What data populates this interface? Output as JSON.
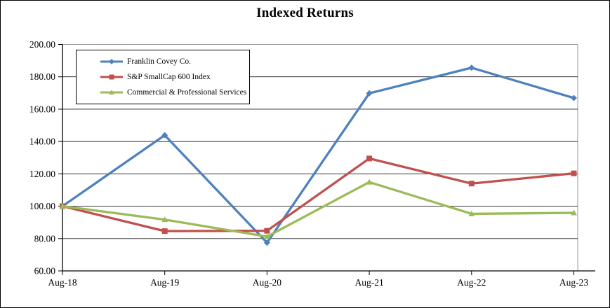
{
  "chart_data": {
    "type": "line",
    "title": "Indexed Returns",
    "categories": [
      "Aug-18",
      "Aug-19",
      "Aug-20",
      "Aug-21",
      "Aug-22",
      "Aug-23"
    ],
    "series": [
      {
        "name": "Franklin Covey Co.",
        "color": "#4F81BD",
        "marker": "diamond",
        "values": [
          100.0,
          143.9,
          77.4,
          169.8,
          185.6,
          166.9
        ]
      },
      {
        "name": "S&P SmallCap 600 Index",
        "color": "#C0504D",
        "marker": "square",
        "values": [
          100.0,
          84.6,
          84.8,
          129.5,
          114.0,
          120.3
        ]
      },
      {
        "name": "Commercial & Professional Services",
        "color": "#9BBB59",
        "marker": "triangle",
        "values": [
          100.0,
          91.7,
          81.2,
          114.9,
          95.3,
          95.9
        ]
      }
    ],
    "ylim": [
      60,
      200
    ],
    "y_tick_step": 20,
    "y_tick_labels": [
      "200.00",
      "180.00",
      "160.00",
      "140.00",
      "120.00",
      "100.00",
      "80.00",
      "60.00"
    ],
    "grid": "horizontal-on",
    "legend_position": "top-left-inside",
    "axis_color": "#000000",
    "plot_border_color": "#9a9a9a",
    "gridline_color": "#1a1a1a"
  }
}
